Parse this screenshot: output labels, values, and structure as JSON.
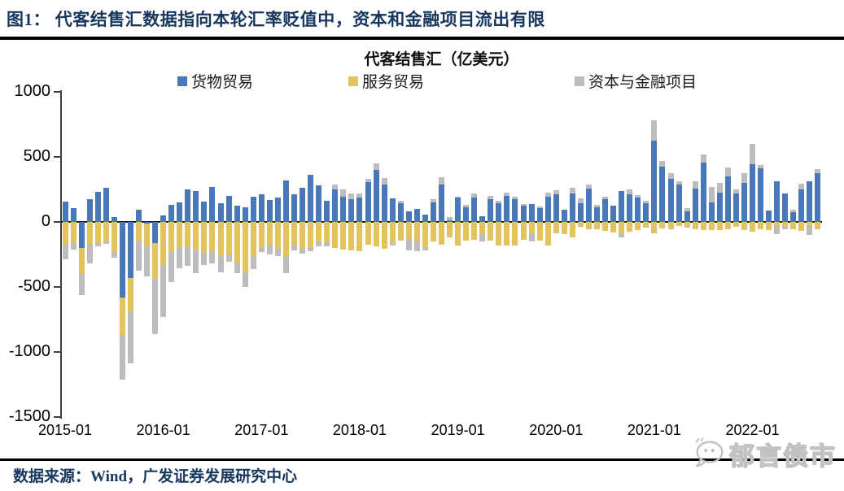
{
  "header": {
    "title": "图1：  代客结售汇数据指向本轮汇率贬值中，资本和金融项目流出有限"
  },
  "source_note": {
    "label": "数据来源：Wind，广发证券发展研究中心"
  },
  "watermark": {
    "text": "郁言债市",
    "icon": "chat-bubble-icon"
  },
  "colors": {
    "goods_trade_blue": "#4878ba",
    "services_trade_yellow": "#e2c35e",
    "capital_financial_gray": "#bdbdbd",
    "header_navy": "#17375e"
  },
  "chart_data": {
    "type": "bar",
    "stacked": true,
    "title": "代客结售汇（亿美元）",
    "xlabel": "",
    "ylabel": "",
    "ylim": [
      -1500,
      1000
    ],
    "yticks": [
      1000,
      500,
      0,
      -500,
      -1000,
      -1500
    ],
    "grid": false,
    "legend_position": "top",
    "xtick_labels": [
      "2015-01",
      "2016-01",
      "2017-01",
      "2018-01",
      "2019-01",
      "2020-01",
      "2021-01",
      "2022-01"
    ],
    "x": [
      "2015-01",
      "2015-02",
      "2015-03",
      "2015-04",
      "2015-05",
      "2015-06",
      "2015-07",
      "2015-08",
      "2015-09",
      "2015-10",
      "2015-11",
      "2015-12",
      "2016-01",
      "2016-02",
      "2016-03",
      "2016-04",
      "2016-05",
      "2016-06",
      "2016-07",
      "2016-08",
      "2016-09",
      "2016-10",
      "2016-11",
      "2016-12",
      "2017-01",
      "2017-02",
      "2017-03",
      "2017-04",
      "2017-05",
      "2017-06",
      "2017-07",
      "2017-08",
      "2017-09",
      "2017-10",
      "2017-11",
      "2017-12",
      "2018-01",
      "2018-02",
      "2018-03",
      "2018-04",
      "2018-05",
      "2018-06",
      "2018-07",
      "2018-08",
      "2018-09",
      "2018-10",
      "2018-11",
      "2018-12",
      "2019-01",
      "2019-02",
      "2019-03",
      "2019-04",
      "2019-05",
      "2019-06",
      "2019-07",
      "2019-08",
      "2019-09",
      "2019-10",
      "2019-11",
      "2019-12",
      "2020-01",
      "2020-02",
      "2020-03",
      "2020-04",
      "2020-05",
      "2020-06",
      "2020-07",
      "2020-08",
      "2020-09",
      "2020-10",
      "2020-11",
      "2020-12",
      "2021-01",
      "2021-02",
      "2021-03",
      "2021-04",
      "2021-05",
      "2021-06",
      "2021-07",
      "2021-08",
      "2021-09",
      "2021-10",
      "2021-11",
      "2021-12",
      "2022-01",
      "2022-02",
      "2022-03",
      "2022-04",
      "2022-05",
      "2022-06",
      "2022-07",
      "2022-08",
      "2022-09"
    ],
    "series": [
      {
        "name": "货物贸易",
        "color": "#4878ba",
        "values": [
          155,
          105,
          -200,
          175,
          230,
          265,
          40,
          -580,
          -430,
          96,
          -10,
          -160,
          50,
          133,
          150,
          252,
          240,
          154,
          270,
          144,
          200,
          127,
          113,
          196,
          210,
          169,
          190,
          320,
          210,
          262,
          365,
          279,
          160,
          248,
          192,
          175,
          190,
          306,
          398,
          285,
          181,
          144,
          81,
          98,
          54,
          150,
          285,
          10,
          185,
          113,
          190,
          46,
          175,
          144,
          200,
          175,
          123,
          138,
          106,
          192,
          210,
          96,
          221,
          144,
          258,
          113,
          175,
          123,
          240,
          215,
          185,
          144,
          623,
          425,
          330,
          290,
          81,
          258,
          455,
          148,
          227,
          352,
          221,
          300,
          446,
          415,
          88,
          310,
          221,
          75,
          248,
          310,
          377
        ]
      },
      {
        "name": "服务贸易",
        "color": "#e2c35e",
        "values": [
          -175,
          -165,
          -195,
          -173,
          -165,
          -148,
          -230,
          -295,
          -255,
          -148,
          -175,
          -280,
          -330,
          -230,
          -195,
          -185,
          -215,
          -240,
          -227,
          -260,
          -248,
          -310,
          -388,
          -262,
          -194,
          -173,
          -206,
          -270,
          -180,
          -206,
          -194,
          -148,
          -158,
          -200,
          -215,
          -221,
          -227,
          -173,
          -185,
          -204,
          -158,
          -142,
          -133,
          -148,
          -196,
          -148,
          -175,
          -120,
          -179,
          -142,
          -138,
          -96,
          -142,
          -179,
          -183,
          -179,
          -138,
          -96,
          -142,
          -179,
          -85,
          -92,
          -121,
          -38,
          -54,
          -58,
          -69,
          -79,
          -96,
          -75,
          -60,
          -44,
          -85,
          -48,
          -55,
          -33,
          -44,
          -54,
          -65,
          -65,
          -60,
          -54,
          -40,
          -65,
          -75,
          -54,
          -60,
          -29,
          -44,
          -54,
          -69,
          -27,
          -58
        ]
      },
      {
        "name": "资本与金融项目",
        "color": "#bdbdbd",
        "values": [
          -115,
          -45,
          -165,
          -148,
          -25,
          -20,
          -47,
          -340,
          -400,
          -230,
          -235,
          -425,
          -400,
          -235,
          -160,
          -150,
          -180,
          -90,
          -94,
          -130,
          -56,
          -84,
          -115,
          -98,
          -37,
          -79,
          -56,
          -125,
          -36,
          -36,
          -33,
          -37,
          -27,
          38,
          58,
          42,
          31,
          25,
          54,
          52,
          -25,
          20,
          -88,
          -77,
          -20,
          25,
          60,
          30,
          10,
          17,
          27,
          -52,
          25,
          21,
          27,
          17,
          17,
          -52,
          13,
          35,
          31,
          0,
          42,
          35,
          31,
          17,
          17,
          0,
          -25,
          35,
          21,
          17,
          156,
          42,
          45,
          25,
          25,
          52,
          62,
          121,
          73,
          67,
          31,
          73,
          156,
          21,
          0,
          -63,
          -15,
          21,
          46,
          -75,
          27
        ]
      }
    ]
  }
}
